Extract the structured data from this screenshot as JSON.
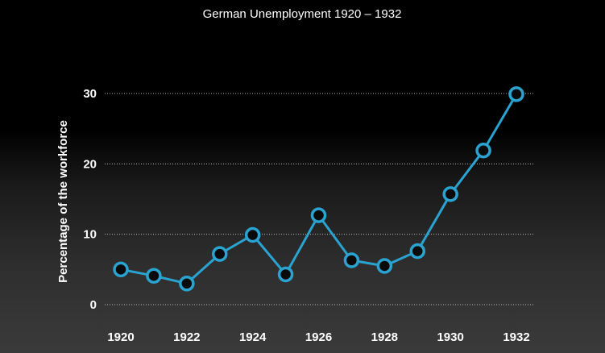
{
  "chart_data": {
    "type": "line",
    "title": "German Unemployment 1920 – 1932",
    "xlabel": "",
    "ylabel": "Percentage of the workforce",
    "x": [
      1920,
      1921,
      1922,
      1923,
      1924,
      1925,
      1926,
      1927,
      1928,
      1929,
      1930,
      1931,
      1932
    ],
    "series": [
      {
        "values": [
          5.0,
          4.1,
          3.0,
          7.2,
          9.9,
          4.3,
          12.7,
          6.3,
          5.5,
          7.6,
          15.7,
          21.9,
          29.9
        ]
      }
    ],
    "x_tick_labels": [
      "1920",
      "1922",
      "1924",
      "1926",
      "1928",
      "1930",
      "1932"
    ],
    "y_ticks": [
      0,
      10,
      20,
      30
    ],
    "y_tick_labels": [
      "0",
      "10",
      "20",
      "30"
    ],
    "xlim": [
      1920,
      1932
    ],
    "ylim": [
      0,
      30
    ],
    "grid": "horizontal dotted",
    "colors": {
      "line": "#2aa3d0",
      "marker_fill": "#0a0a0a",
      "marker_stroke": "#2aa3d0",
      "text": "#ffffff",
      "grid": "#bdbdbd"
    }
  }
}
